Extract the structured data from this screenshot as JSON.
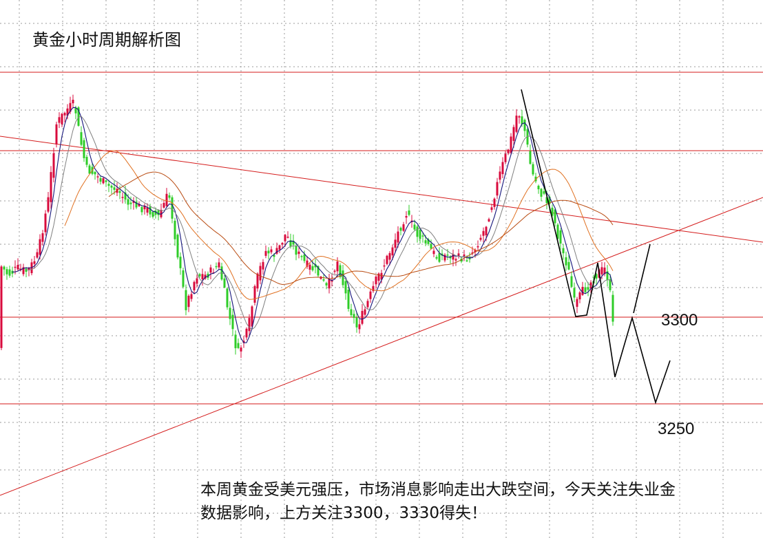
{
  "title": "黄金小时周期解析图",
  "commentary": {
    "line1": "本周黄金受美元强压，市场消息影响走出大跌空间，今天关注失业金",
    "line2": "数据影响，上方关注3300，3330得失！"
  },
  "colors": {
    "up_candle": "#d80a3c",
    "down_candle": "#2ecc27",
    "ma_fast": "#13137a",
    "ma_mid": "#7f7f7f",
    "ma_slow_1": "#e07020",
    "ma_slow_2": "#b84a10",
    "level_line": "#d41a1a",
    "projection": "#000000",
    "grid": "#9a9a9a"
  },
  "chart_data": {
    "type": "candlestick",
    "title": "黄金小时周期解析图",
    "levels": [
      3300,
      3250
    ],
    "level_labels": [
      "3300",
      "3250"
    ],
    "series": [
      {
        "name": "",
        "kind": "candles"
      },
      {
        "name": "",
        "kind": "moving-average"
      },
      {
        "name": "",
        "kind": "moving-average"
      },
      {
        "name": "",
        "kind": "moving-average"
      },
      {
        "name": "",
        "kind": "moving-average"
      },
      {
        "name": "",
        "kind": "trendline-resistance"
      },
      {
        "name": "",
        "kind": "trendline-support"
      },
      {
        "name": "",
        "kind": "projection-path"
      }
    ],
    "grid": true,
    "legend": "none"
  }
}
